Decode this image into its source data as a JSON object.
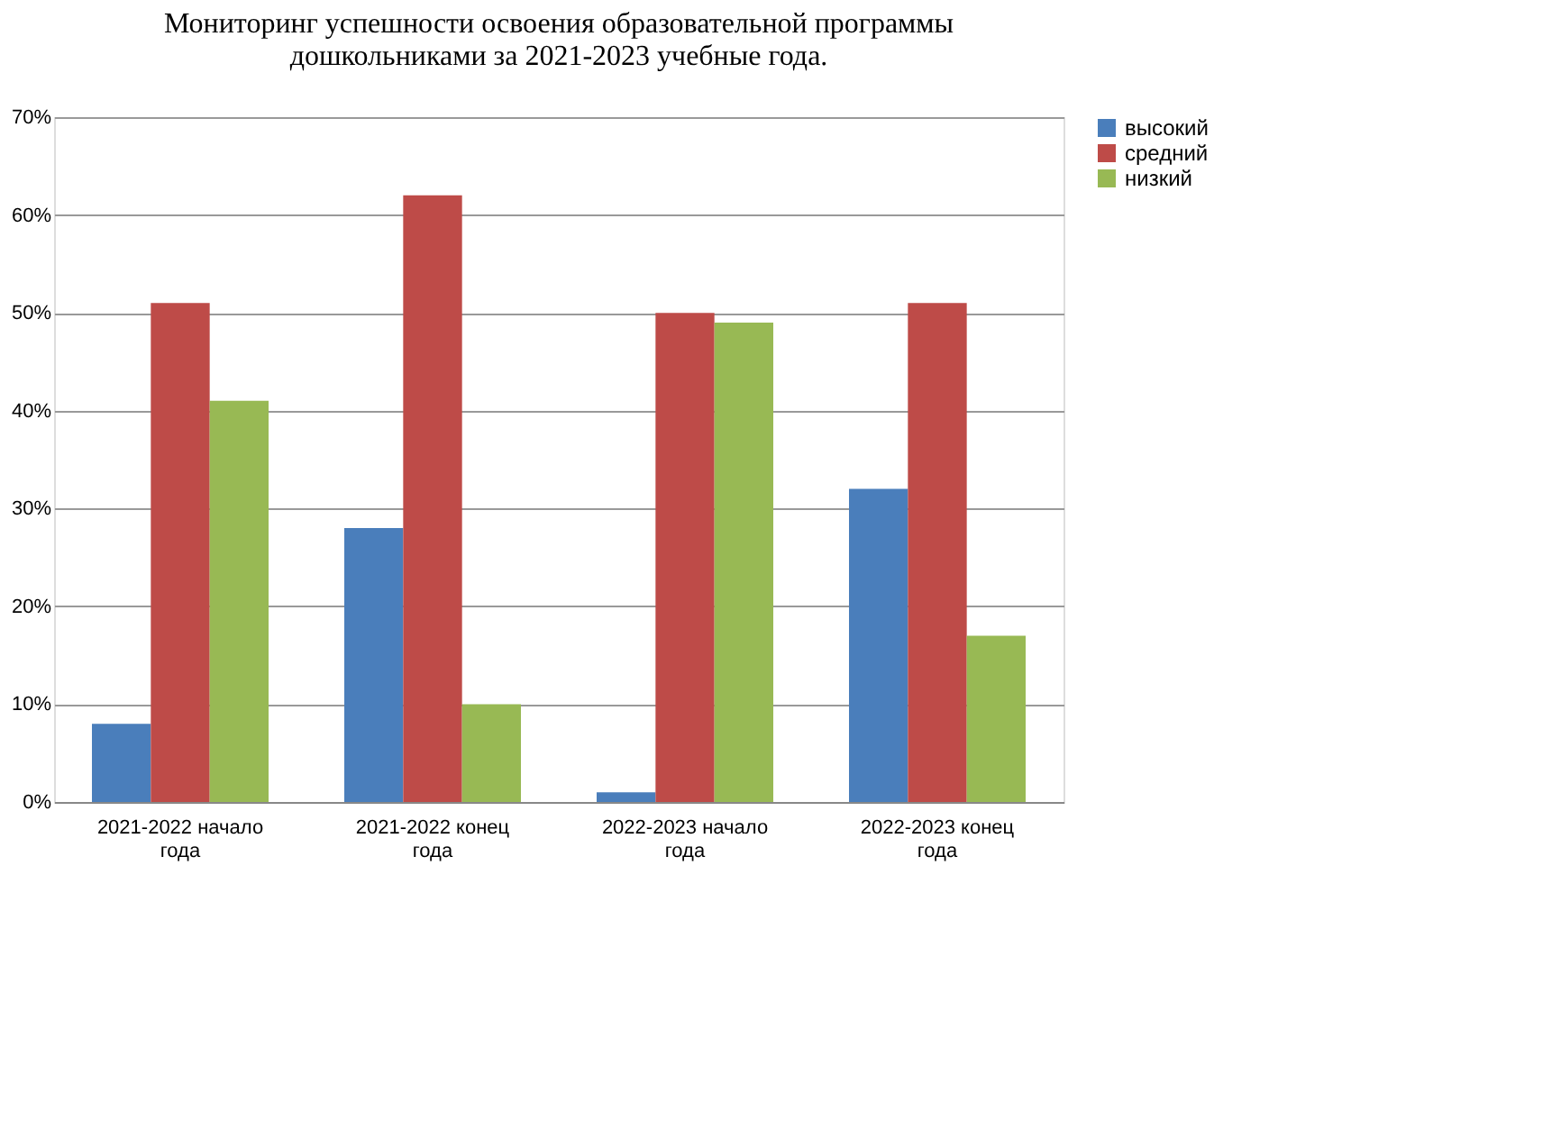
{
  "chart_data": {
    "type": "bar",
    "title": "Мониторинг успешности освоения образовательной программы\nдошкольниками за 2021-2023 учебные года.",
    "categories": [
      "2021-2022 начало года",
      "2021-2022 конец года",
      "2022-2023 начало года",
      "2022-2023 конец года"
    ],
    "series": [
      {
        "name": "высокий",
        "color": "#4a7ebb",
        "values": [
          8,
          28,
          1,
          32
        ]
      },
      {
        "name": "средний",
        "color": "#be4b48",
        "values": [
          51,
          62,
          50,
          51
        ]
      },
      {
        "name": "низкий",
        "color": "#98b954",
        "values": [
          41,
          10,
          49,
          17
        ]
      }
    ],
    "ylim": [
      0,
      70
    ],
    "yticks": [
      {
        "value": 0,
        "label": "0%"
      },
      {
        "value": 10,
        "label": "10%"
      },
      {
        "value": 20,
        "label": "20%"
      },
      {
        "value": 30,
        "label": "30%"
      },
      {
        "value": 40,
        "label": "40%"
      },
      {
        "value": 50,
        "label": "50%"
      },
      {
        "value": 60,
        "label": "60%"
      },
      {
        "value": 70,
        "label": "70%"
      }
    ],
    "grid": "y",
    "legend": "right"
  }
}
